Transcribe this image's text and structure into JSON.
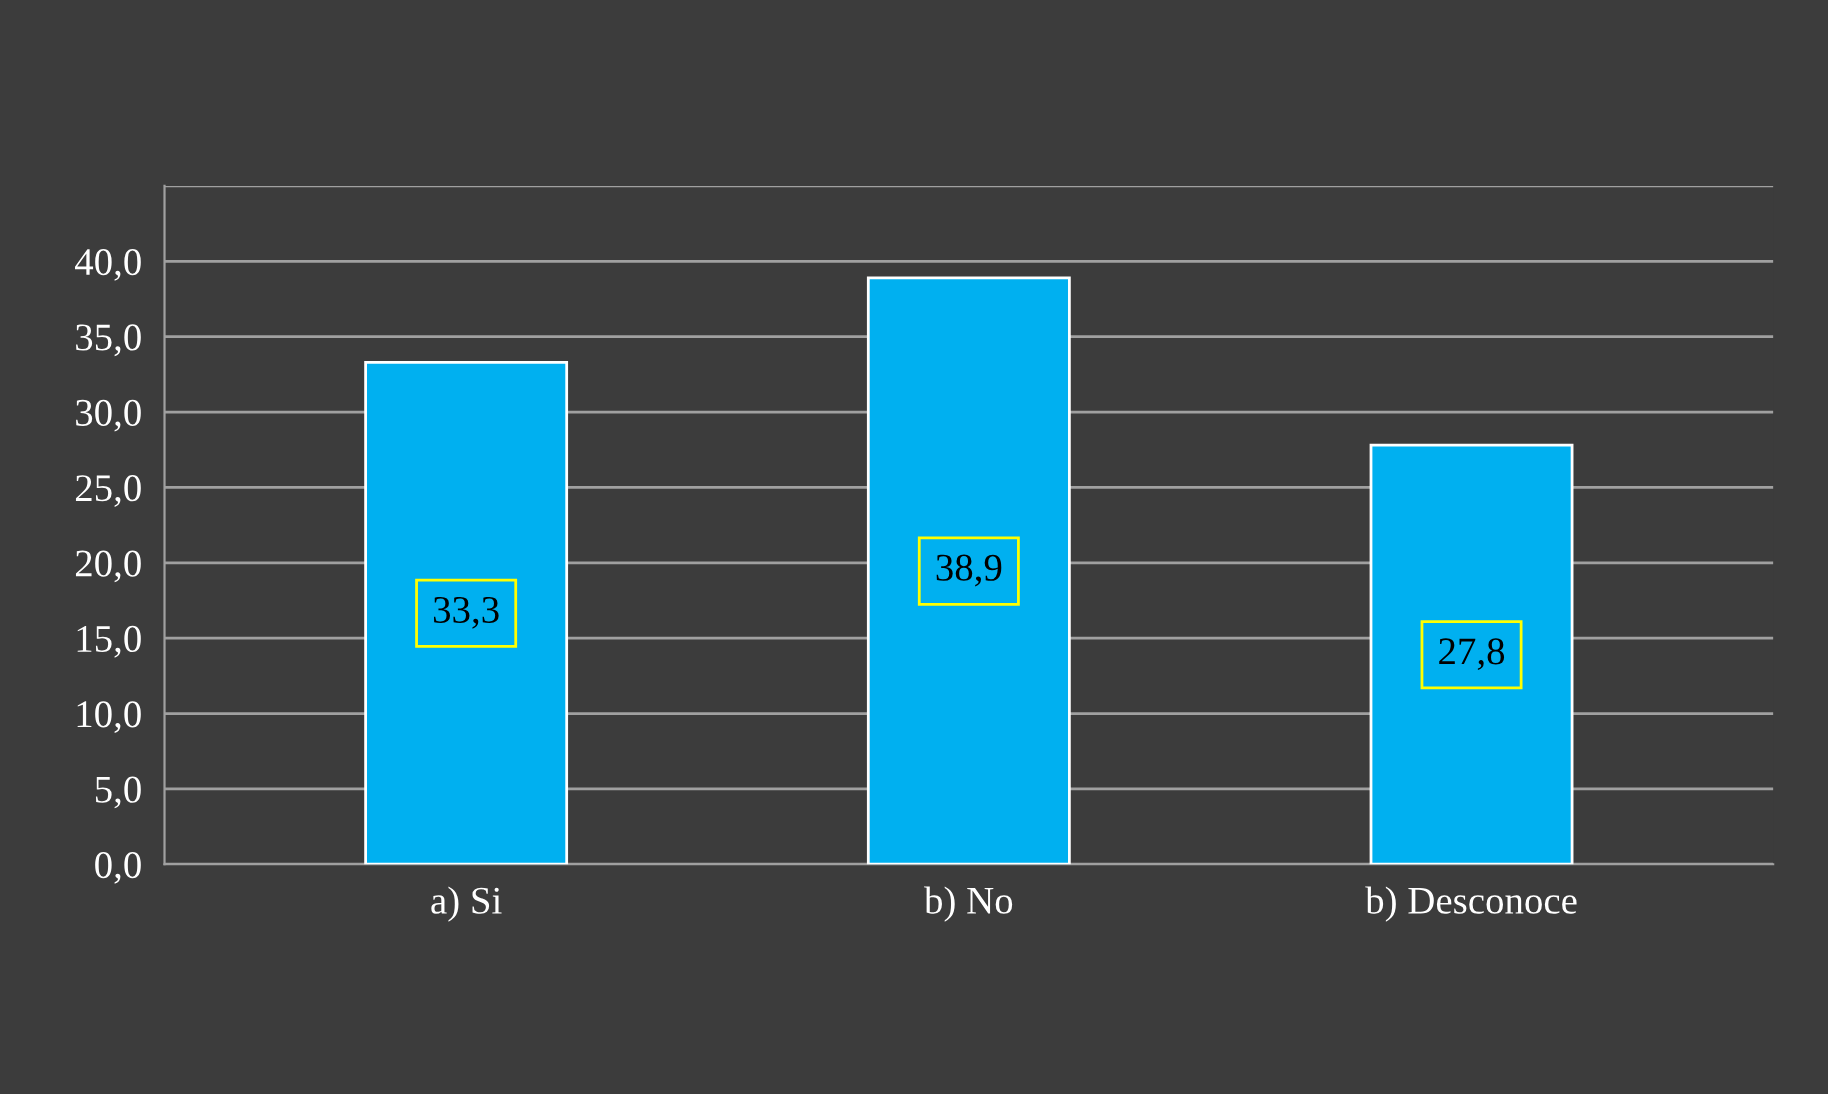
{
  "chart_data": {
    "type": "bar",
    "categories": [
      "a) Si",
      "b) No",
      "b) Desconoce"
    ],
    "values": [
      33.3,
      38.9,
      27.8
    ],
    "value_labels": [
      "33,3",
      "38,9",
      "27,8"
    ],
    "color": "#00b0f0",
    "ylim": [
      0,
      45
    ],
    "yticks": [
      {
        "value": 0,
        "label": "0,0"
      },
      {
        "value": 5,
        "label": "5,0"
      },
      {
        "value": 10,
        "label": "10,0"
      },
      {
        "value": 15,
        "label": "15,0"
      },
      {
        "value": 20,
        "label": "20,0"
      },
      {
        "value": 25,
        "label": "25,0"
      },
      {
        "value": 30,
        "label": "30,0"
      },
      {
        "value": 35,
        "label": "35,0"
      },
      {
        "value": 40,
        "label": "40,0"
      },
      {
        "value": 45,
        "label": null
      }
    ],
    "grid": "y"
  }
}
